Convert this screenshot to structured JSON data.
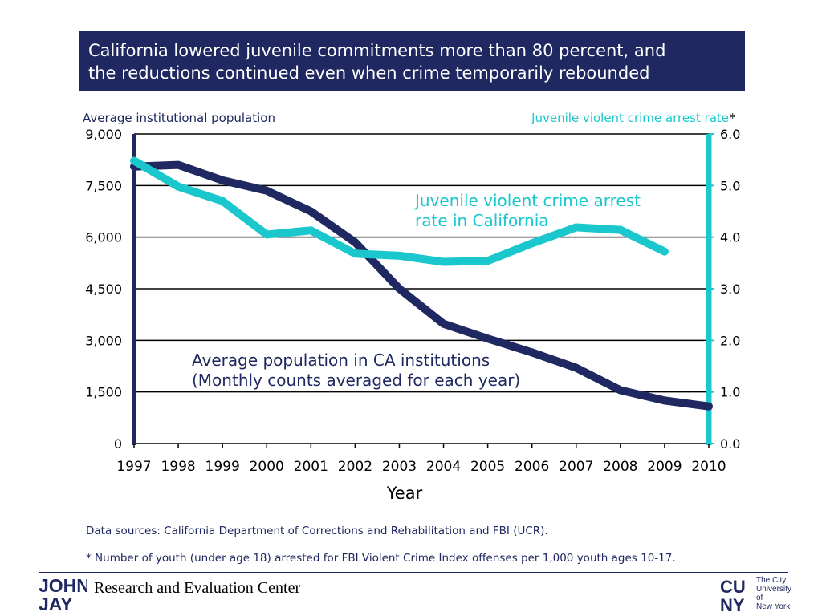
{
  "title": {
    "line1": "California lowered juvenile commitments more than 80 percent, and",
    "line2": "the reductions continued even when crime temporarily rebounded"
  },
  "colors": {
    "banner": "#1f2860",
    "population": "#1f2860",
    "rate": "#19c7cc",
    "grid": "#000000"
  },
  "chart_data": {
    "type": "line",
    "title": "California lowered juvenile commitments more than 80 percent, and the reductions continued even when crime temporarily rebounded",
    "xlabel": "Year",
    "ylabel_left": "Average institutional population",
    "ylabel_right": "Juvenile violent crime arrest rate",
    "right_asterisk": "*",
    "x": [
      1997,
      1998,
      1999,
      2000,
      2001,
      2002,
      2003,
      2004,
      2005,
      2006,
      2007,
      2008,
      2009,
      2010
    ],
    "x_tick_labels": [
      "1997",
      "1998",
      "1999",
      "2000",
      "2001",
      "2002",
      "2003",
      "2004",
      "2005",
      "2006",
      "2007",
      "2008",
      "2009",
      "2010"
    ],
    "ylim_left": [
      0,
      9000
    ],
    "ylim_right": [
      0,
      6
    ],
    "left_ticks": [
      {
        "value": 0,
        "label": "0"
      },
      {
        "value": 1500,
        "label": "1,500"
      },
      {
        "value": 3000,
        "label": "3,000"
      },
      {
        "value": 4500,
        "label": "4,500"
      },
      {
        "value": 6000,
        "label": "6,000"
      },
      {
        "value": 7500,
        "label": "7,500"
      },
      {
        "value": 9000,
        "label": "9,000"
      }
    ],
    "right_ticks": [
      {
        "value": 0,
        "label": "0.0"
      },
      {
        "value": 1,
        "label": "1.0"
      },
      {
        "value": 2,
        "label": "2.0"
      },
      {
        "value": 3,
        "label": "3.0"
      },
      {
        "value": 4,
        "label": "4.0"
      },
      {
        "value": 5,
        "label": "5.0"
      },
      {
        "value": 6,
        "label": "6.0"
      }
    ],
    "series": [
      {
        "name": "Average population in CA institutions",
        "axis": "left",
        "x": [
          1997,
          1998,
          1999,
          2000,
          2001,
          2002,
          2003,
          2004,
          2005,
          2006,
          2007,
          2008,
          2009,
          2010
        ],
        "values": [
          8050,
          8100,
          7650,
          7350,
          6750,
          5850,
          4500,
          3480,
          3050,
          2650,
          2200,
          1550,
          1250,
          1080
        ]
      },
      {
        "name": "Juvenile violent crime arrest rate in California",
        "axis": "right",
        "x": [
          1997,
          1998,
          1999,
          2000,
          2001,
          2002,
          2003,
          2004,
          2005,
          2006,
          2007,
          2008,
          2009
        ],
        "values": [
          5.48,
          4.98,
          4.7,
          4.05,
          4.13,
          3.68,
          3.64,
          3.52,
          3.54,
          3.88,
          4.19,
          4.14,
          3.72
        ]
      }
    ],
    "annotations": {
      "rate_line1": "Juvenile violent crime arrest",
      "rate_line2": "rate in California",
      "pop_line1": "Average population in CA institutions",
      "pop_line2": "(Monthly counts averaged for each year)"
    },
    "grid": true
  },
  "sources": {
    "data_sources": "Data sources: California Department of Corrections and Rehabilitation and FBI (UCR).",
    "footnote": "* Number of youth (under age 18) arrested for FBI Violent Crime Index offenses per 1,000 youth ages 10-17."
  },
  "footer": {
    "center_name": "Research and Evaluation Center",
    "jj_logo_line1": "JOHN",
    "jj_logo_line2": "JAY",
    "cuny_logo_line1": "CU",
    "cuny_logo_line2": "NY",
    "cuny_text": [
      "The City",
      "University",
      "of",
      "New York"
    ]
  }
}
